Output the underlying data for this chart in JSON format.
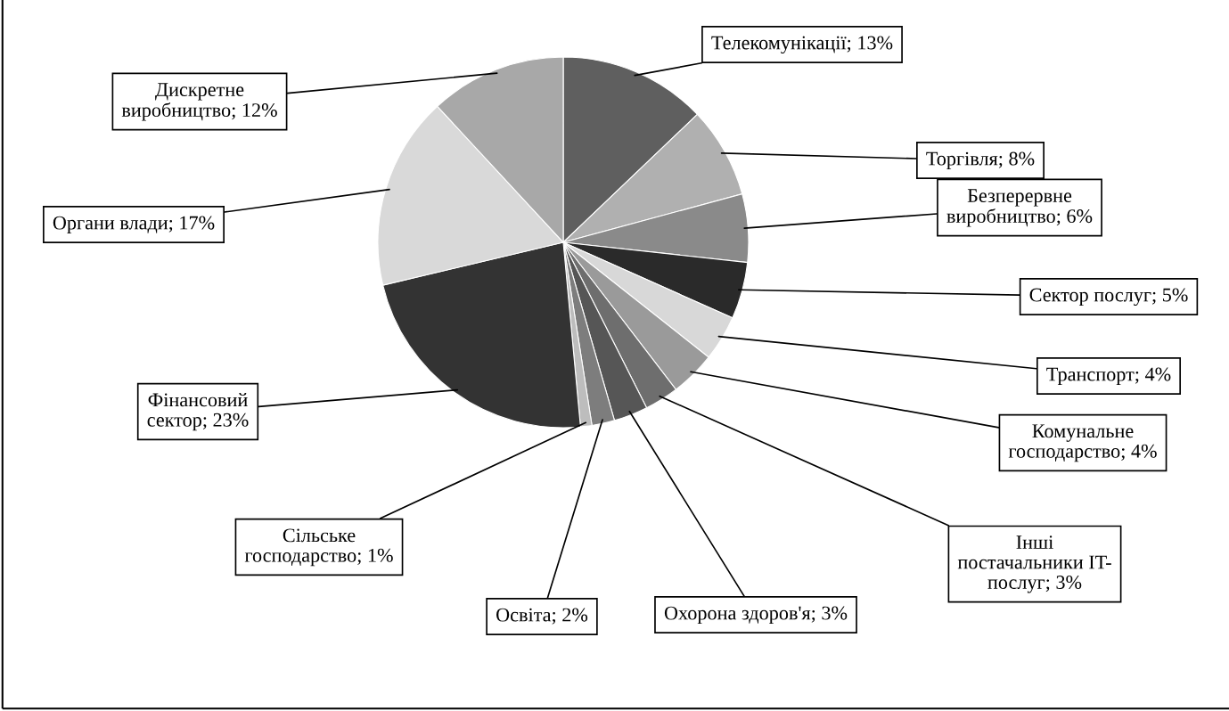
{
  "chart_data": {
    "type": "pie",
    "categories": [
      "Телекомунікації",
      "Торгівля",
      "Безперервне\nвиробництво",
      "Сектор послуг",
      "Транспорт",
      "Комунальне\nгосподарство",
      "Інші\nпостачальники IT-\nпослуг",
      "Охорона здоров'я",
      "Освіта",
      "Сільське\nгосподарство",
      "Фінансовий\nсектор",
      "Органи влади",
      "Дискретне\nвиробництво"
    ],
    "values": [
      13,
      8,
      6,
      5,
      4,
      4,
      3,
      3,
      2,
      1,
      23,
      17,
      12
    ],
    "value_labels": [
      "13%",
      "8%",
      "6%",
      "5%",
      "4%",
      "4%",
      "3%",
      "3%",
      "2%",
      "1%",
      "23%",
      "17%",
      "12%"
    ],
    "colors": [
      "#5f5f5f",
      "#b0b0b0",
      "#8a8a8a",
      "#2a2a2a",
      "#d8d8d8",
      "#9a9a9a",
      "#6e6e6e",
      "#565656",
      "#7d7d7d",
      "#bdbdbd",
      "#333333",
      "#d9d9d9",
      "#a8a8a8"
    ],
    "legend": false
  }
}
